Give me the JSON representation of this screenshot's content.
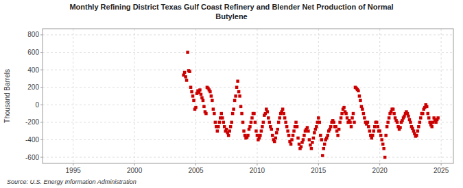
{
  "chart_data": {
    "type": "scatter",
    "title": "Monthly Refining District Texas Gulf Coast Refinery and Blender Net Production of Normal\nButylene",
    "y_label": "Thousand Barrels",
    "source": "Source: U.S. Energy Information Administration",
    "color": "#cc0000",
    "marker": "square",
    "grid": true,
    "xlim": [
      1992.5,
      2026.0
    ],
    "ylim": [
      -670,
      870
    ],
    "xticks": [
      1995,
      2000,
      2005,
      2010,
      2015,
      2020,
      2025
    ],
    "yticks": [
      -600,
      -400,
      -200,
      0,
      200,
      400,
      600,
      800
    ],
    "x": [
      2004.0,
      2004.083,
      2004.167,
      2004.25,
      2004.333,
      2004.417,
      2004.5,
      2004.583,
      2004.667,
      2004.75,
      2004.833,
      2004.917,
      2005.0,
      2005.083,
      2005.167,
      2005.25,
      2005.333,
      2005.417,
      2005.5,
      2005.583,
      2005.667,
      2005.75,
      2005.833,
      2005.917,
      2006.0,
      2006.083,
      2006.167,
      2006.25,
      2006.333,
      2006.417,
      2006.5,
      2006.583,
      2006.667,
      2006.75,
      2006.833,
      2006.917,
      2007.0,
      2007.083,
      2007.167,
      2007.25,
      2007.333,
      2007.417,
      2007.5,
      2007.583,
      2007.667,
      2007.75,
      2007.833,
      2007.917,
      2008.0,
      2008.083,
      2008.167,
      2008.25,
      2008.333,
      2008.417,
      2008.5,
      2008.583,
      2008.667,
      2008.75,
      2008.833,
      2008.917,
      2009.0,
      2009.083,
      2009.167,
      2009.25,
      2009.333,
      2009.417,
      2009.5,
      2009.583,
      2009.667,
      2009.75,
      2009.833,
      2009.917,
      2010.0,
      2010.083,
      2010.167,
      2010.25,
      2010.333,
      2010.417,
      2010.5,
      2010.583,
      2010.667,
      2010.75,
      2010.833,
      2010.917,
      2011.0,
      2011.083,
      2011.167,
      2011.25,
      2011.333,
      2011.417,
      2011.5,
      2011.583,
      2011.667,
      2011.75,
      2011.833,
      2011.917,
      2012.0,
      2012.083,
      2012.167,
      2012.25,
      2012.333,
      2012.417,
      2012.5,
      2012.583,
      2012.667,
      2012.75,
      2012.833,
      2012.917,
      2013.0,
      2013.083,
      2013.167,
      2013.25,
      2013.333,
      2013.417,
      2013.5,
      2013.583,
      2013.667,
      2013.75,
      2013.833,
      2013.917,
      2014.0,
      2014.083,
      2014.167,
      2014.25,
      2014.333,
      2014.417,
      2014.5,
      2014.583,
      2014.667,
      2014.75,
      2014.833,
      2014.917,
      2015.0,
      2015.083,
      2015.167,
      2015.25,
      2015.333,
      2015.417,
      2015.5,
      2015.583,
      2015.667,
      2015.75,
      2015.833,
      2015.917,
      2016.0,
      2016.083,
      2016.167,
      2016.25,
      2016.333,
      2016.417,
      2016.5,
      2016.583,
      2016.667,
      2016.75,
      2016.833,
      2016.917,
      2017.0,
      2017.083,
      2017.167,
      2017.25,
      2017.333,
      2017.417,
      2017.5,
      2017.583,
      2017.667,
      2017.75,
      2017.833,
      2017.917,
      2018.0,
      2018.083,
      2018.167,
      2018.25,
      2018.333,
      2018.417,
      2018.5,
      2018.583,
      2018.667,
      2018.75,
      2018.833,
      2018.917,
      2019.0,
      2019.083,
      2019.167,
      2019.25,
      2019.333,
      2019.417,
      2019.5,
      2019.583,
      2019.667,
      2019.75,
      2019.833,
      2019.917,
      2020.0,
      2020.083,
      2020.167,
      2020.25,
      2020.333,
      2020.417,
      2020.5,
      2020.583,
      2020.667,
      2020.75,
      2020.833,
      2020.917,
      2021.0,
      2021.083,
      2021.167,
      2021.25,
      2021.333,
      2021.417,
      2021.5,
      2021.583,
      2021.667,
      2021.75,
      2021.833,
      2021.917,
      2022.0,
      2022.083,
      2022.167,
      2022.25,
      2022.333,
      2022.417,
      2022.5,
      2022.583,
      2022.667,
      2022.75,
      2022.833,
      2022.917,
      2023.0,
      2023.083,
      2023.167,
      2023.25,
      2023.333,
      2023.417,
      2023.5,
      2023.583,
      2023.667,
      2023.75,
      2023.833,
      2023.917,
      2024.0,
      2024.083,
      2024.167,
      2024.25,
      2024.333,
      2024.417,
      2024.5,
      2024.583,
      2024.667,
      2024.75
    ],
    "values": [
      340,
      370,
      320,
      280,
      600,
      390,
      380,
      200,
      150,
      100,
      50,
      -50,
      -30,
      130,
      160,
      140,
      170,
      120,
      80,
      50,
      -20,
      -80,
      -100,
      200,
      190,
      170,
      150,
      100,
      50,
      -50,
      -100,
      -200,
      -250,
      -300,
      -250,
      -200,
      -150,
      -100,
      -150,
      -200,
      -250,
      -300,
      -280,
      -320,
      -350,
      -300,
      -250,
      -200,
      -100,
      -50,
      50,
      100,
      200,
      270,
      150,
      100,
      -20,
      -100,
      -200,
      -300,
      -350,
      -380,
      -370,
      -350,
      -280,
      -250,
      -200,
      -150,
      -100,
      -100,
      -200,
      -300,
      -350,
      -400,
      -380,
      -350,
      -300,
      -250,
      -200,
      -120,
      -100,
      -50,
      -80,
      -150,
      -200,
      -250,
      -280,
      -350,
      -400,
      -420,
      -380,
      -320,
      -280,
      -200,
      -150,
      -100,
      -80,
      -50,
      -100,
      -150,
      -200,
      -250,
      -300,
      -350,
      -420,
      -450,
      -400,
      -350,
      -300,
      -250,
      -200,
      -250,
      -380,
      -450,
      -500,
      -480,
      -430,
      -400,
      -350,
      -300,
      -280,
      -260,
      -300,
      -400,
      -460,
      -500,
      -430,
      -380,
      -320,
      -280,
      -250,
      -200,
      -150,
      -200,
      -350,
      -400,
      -580,
      -500,
      -450,
      -400,
      -380,
      -350,
      -300,
      -280,
      -250,
      -200,
      -180,
      -200,
      -250,
      -250,
      -300,
      -350,
      -280,
      -200,
      -150,
      -100,
      -50,
      -30,
      -80,
      -100,
      -150,
      -200,
      -180,
      -200,
      -250,
      -150,
      -100,
      -200,
      200,
      190,
      175,
      160,
      100,
      50,
      -20,
      -50,
      -100,
      -150,
      -200,
      -220,
      -200,
      -250,
      -300,
      -350,
      -380,
      -350,
      -300,
      -250,
      -200,
      -200,
      -250,
      -300,
      -300,
      -350,
      -400,
      -450,
      -500,
      -600,
      -350,
      -250,
      -200,
      -150,
      -100,
      -80,
      -50,
      -50,
      -100,
      -150,
      -180,
      -200,
      -250,
      -280,
      -260,
      -200,
      -180,
      -150,
      -130,
      -100,
      -80,
      -100,
      -130,
      -170,
      -200,
      -250,
      -270,
      -300,
      -330,
      -360,
      -350,
      -300,
      -250,
      -200,
      -150,
      -100,
      -100,
      -50,
      -30,
      0,
      -20,
      -100,
      -150,
      -200,
      -230,
      -250,
      -200,
      -150,
      -180,
      -200,
      -170,
      -150
    ]
  }
}
